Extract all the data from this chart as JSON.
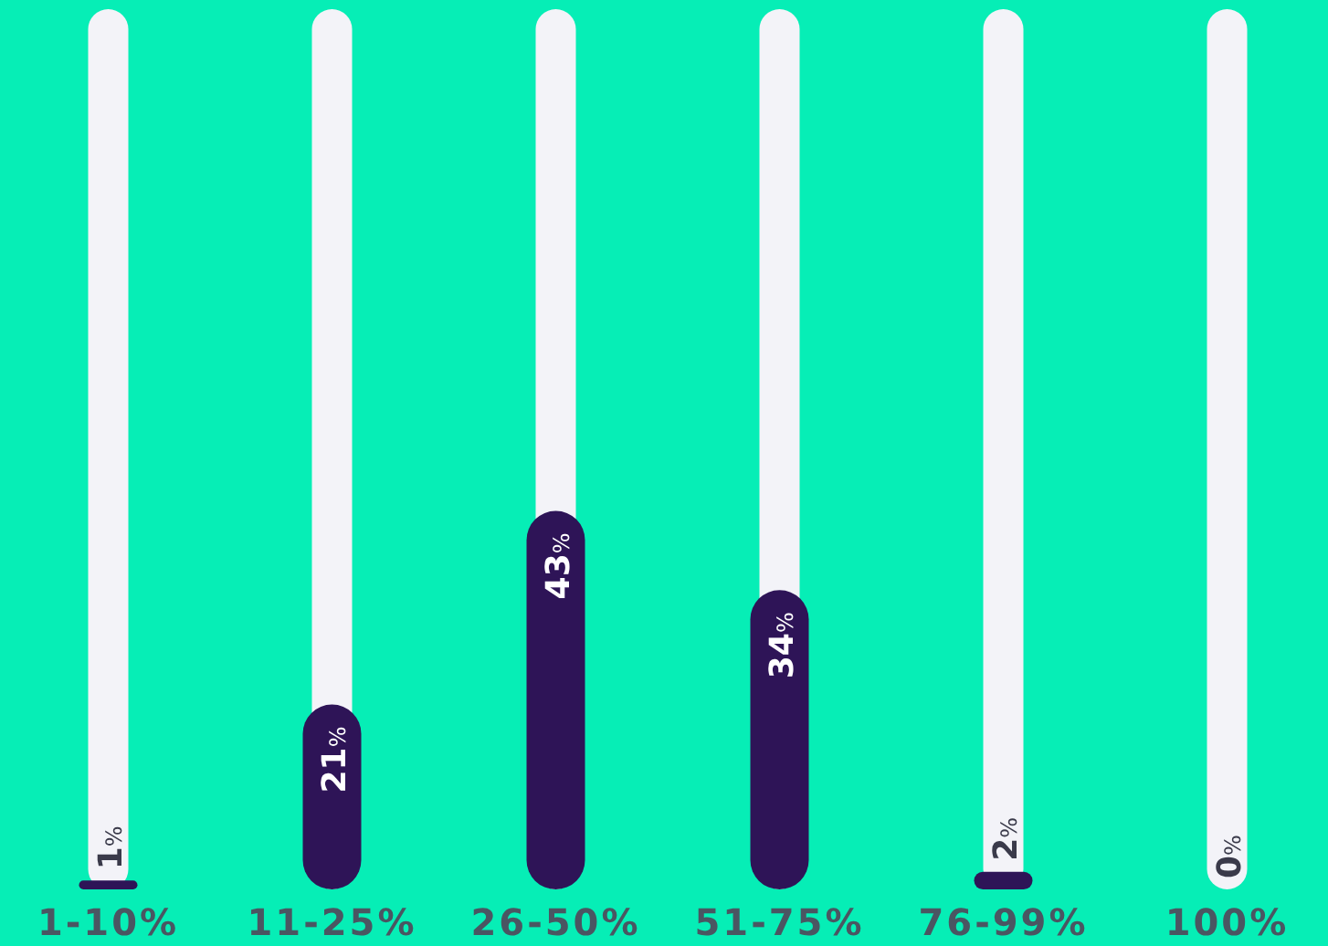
{
  "chart_data": {
    "type": "bar",
    "categories": [
      "1-10%",
      "11-25%",
      "26-50%",
      "51-75%",
      "76-99%",
      "100%"
    ],
    "ylim": [
      0,
      100
    ],
    "tick_labels": false,
    "series": [
      {
        "color": "#f3f3f8",
        "values": [
          100,
          100,
          100,
          100,
          100,
          100
        ]
      },
      {
        "color": "#2e1457",
        "values": [
          1,
          21,
          43,
          34,
          2,
          0
        ],
        "value_labels": [
          "1%",
          "21%",
          "43%",
          "34%",
          "2%",
          "0%"
        ]
      }
    ]
  }
}
